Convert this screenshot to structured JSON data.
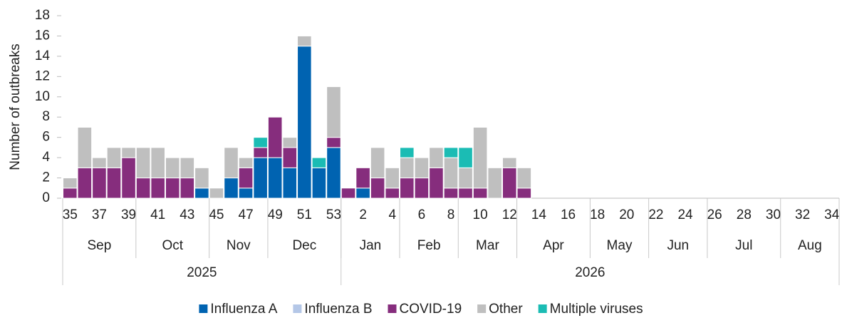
{
  "chart_data": {
    "type": "stacked-bar",
    "y_label": "Number of outbreaks",
    "ylim": [
      0,
      18
    ],
    "yticks": [
      0,
      2,
      4,
      6,
      8,
      10,
      12,
      14,
      16,
      18
    ],
    "categories": [
      "35",
      null,
      "37",
      null,
      "39",
      null,
      "41",
      null,
      "43",
      null,
      "45",
      null,
      "47",
      null,
      "49",
      null,
      "51",
      null,
      "53",
      null,
      "2",
      null,
      "4",
      null,
      "6",
      null,
      "8",
      null,
      "10",
      null,
      "12",
      null,
      "14",
      null,
      "16",
      null,
      "18",
      null,
      "20",
      null,
      "22",
      null,
      "24",
      null,
      "26",
      null,
      "28",
      null,
      "30",
      null,
      "32",
      null,
      "34"
    ],
    "months": [
      {
        "label": "Sep",
        "weeks": 5
      },
      {
        "label": "Oct",
        "weeks": 5
      },
      {
        "label": "Nov",
        "weeks": 4
      },
      {
        "label": "Dec",
        "weeks": 5
      },
      {
        "label": "Jan",
        "weeks": 4
      },
      {
        "label": "Feb",
        "weeks": 4
      },
      {
        "label": "Mar",
        "weeks": 4
      },
      {
        "label": "Apr",
        "weeks": 5
      },
      {
        "label": "May",
        "weeks": 4
      },
      {
        "label": "Jun",
        "weeks": 4
      },
      {
        "label": "Jul",
        "weeks": 5
      },
      {
        "label": "Aug",
        "weeks": 4
      }
    ],
    "years": [
      {
        "label": "2025",
        "weeks": 19
      },
      {
        "label": "2026",
        "weeks": 34
      }
    ],
    "series": [
      {
        "name": "Influenza A",
        "color": "#0063b1",
        "values": [
          0,
          0,
          0,
          0,
          0,
          0,
          0,
          0,
          0,
          1,
          0,
          2,
          1,
          4,
          4,
          3,
          15,
          3,
          5,
          0,
          1,
          0,
          0,
          0,
          0,
          0,
          0,
          0,
          0,
          0,
          0,
          0,
          0,
          0,
          0,
          0,
          0,
          0,
          0,
          0,
          0,
          0,
          0,
          0,
          0,
          0,
          0,
          0,
          0,
          0,
          0,
          0,
          0
        ]
      },
      {
        "name": "Influenza B",
        "color": "#b4c7e7",
        "values": [
          0,
          0,
          0,
          0,
          0,
          0,
          0,
          0,
          0,
          0,
          0,
          0,
          0,
          0,
          0,
          0,
          0,
          0,
          0,
          0,
          0,
          0,
          0,
          0,
          0,
          0,
          0,
          0,
          0,
          0,
          0,
          0,
          0,
          0,
          0,
          0,
          0,
          0,
          0,
          0,
          0,
          0,
          0,
          0,
          0,
          0,
          0,
          0,
          0,
          0,
          0,
          0,
          0
        ]
      },
      {
        "name": "COVID-19",
        "color": "#862d7d",
        "values": [
          1,
          3,
          3,
          3,
          4,
          2,
          2,
          2,
          2,
          0,
          0,
          0,
          2,
          1,
          4,
          2,
          0,
          0,
          1,
          1,
          2,
          2,
          1,
          2,
          2,
          3,
          1,
          1,
          1,
          0,
          3,
          1,
          0,
          0,
          0,
          0,
          0,
          0,
          0,
          0,
          0,
          0,
          0,
          0,
          0,
          0,
          0,
          0,
          0,
          0,
          0,
          0,
          0
        ]
      },
      {
        "name": "Other",
        "color": "#bfbfbf",
        "values": [
          1,
          4,
          1,
          2,
          1,
          3,
          3,
          2,
          2,
          2,
          1,
          3,
          1,
          0,
          0,
          1,
          1,
          0,
          5,
          0,
          0,
          3,
          2,
          2,
          2,
          2,
          3,
          2,
          6,
          3,
          1,
          2,
          0,
          0,
          0,
          0,
          0,
          0,
          0,
          0,
          0,
          0,
          0,
          0,
          0,
          0,
          0,
          0,
          0,
          0,
          0,
          0,
          0
        ]
      },
      {
        "name": "Multiple viruses",
        "color": "#1bbcb4",
        "values": [
          0,
          0,
          0,
          0,
          0,
          0,
          0,
          0,
          0,
          0,
          0,
          0,
          0,
          1,
          0,
          0,
          0,
          1,
          0,
          0,
          0,
          0,
          0,
          1,
          0,
          0,
          1,
          2,
          0,
          0,
          0,
          0,
          0,
          0,
          0,
          0,
          0,
          0,
          0,
          0,
          0,
          0,
          0,
          0,
          0,
          0,
          0,
          0,
          0,
          0,
          0,
          0,
          0
        ]
      }
    ]
  }
}
